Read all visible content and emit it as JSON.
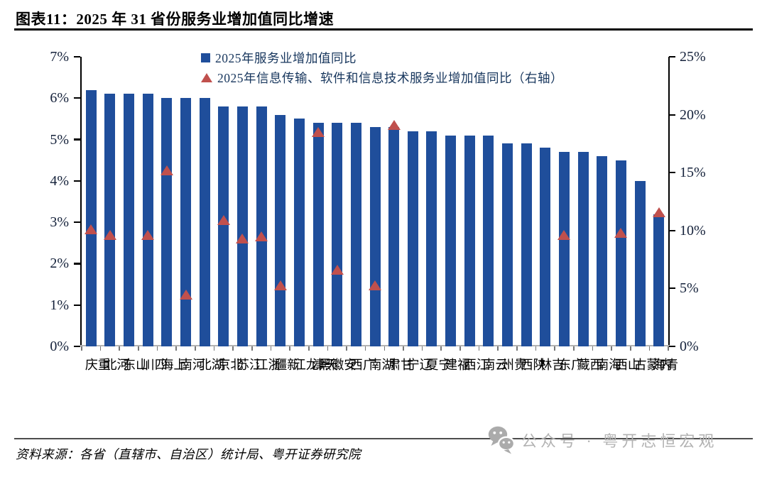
{
  "header": {
    "title": "图表11：2025 年 31 省份服务业增加值同比增速"
  },
  "chart_data": {
    "type": "bar",
    "title": "图表11：2025 年 31 省份服务业增加值同比增速",
    "legend": [
      "2025年服务业增加值同比",
      "2025年信息传输、软件和信息技术服务业增加值同比（右轴）"
    ],
    "legend_position": "top-center",
    "grid": false,
    "categories": [
      "重庆",
      "河北",
      "山东",
      "四川",
      "上海",
      "河南",
      "湖北",
      "北京",
      "江苏",
      "浙江",
      "新疆",
      "黑龙江",
      "天津",
      "安徽",
      "广西",
      "湖南",
      "甘肃",
      "辽宁",
      "宁夏",
      "福建",
      "江西",
      "云南",
      "贵州",
      "陕西",
      "吉林",
      "广东",
      "西藏",
      "海南",
      "山西",
      "内蒙古",
      "青海"
    ],
    "series": [
      {
        "name": "2025年服务业增加值同比",
        "type": "bar",
        "axis": "left",
        "unit": "%",
        "color": "#1F4E9B",
        "values": [
          6.2,
          6.1,
          6.1,
          6.1,
          6.0,
          6.0,
          6.0,
          5.8,
          5.8,
          5.8,
          5.6,
          5.5,
          5.4,
          5.4,
          5.4,
          5.3,
          5.3,
          5.2,
          5.2,
          5.1,
          5.1,
          5.1,
          4.9,
          4.9,
          4.8,
          4.7,
          4.7,
          4.6,
          4.5,
          4.0,
          3.2
        ]
      },
      {
        "name": "2025年信息传输、软件和信息技术服务业增加值同比（右轴）",
        "type": "triangle-marker",
        "axis": "right",
        "unit": "%",
        "color": "#C0504D",
        "values": [
          10.1,
          9.6,
          null,
          9.6,
          15.2,
          4.5,
          null,
          10.9,
          9.3,
          9.5,
          5.3,
          null,
          18.5,
          6.6,
          null,
          5.3,
          19.1,
          null,
          null,
          null,
          null,
          null,
          null,
          null,
          null,
          9.6,
          null,
          null,
          9.8,
          null,
          11.6
        ]
      }
    ],
    "left_axis": {
      "min": 0,
      "max": 7,
      "ticks": [
        "7%",
        "6%",
        "5%",
        "4%",
        "3%",
        "2%",
        "1%",
        "0%"
      ]
    },
    "right_axis": {
      "min": 0,
      "max": 25,
      "ticks": [
        "25%",
        "20%",
        "15%",
        "10%",
        "5%",
        "0%"
      ]
    }
  },
  "footer": {
    "source": "资料来源：各省（直辖市、自治区）统计局、粤开证券研究院",
    "watermark": "公众号 · 粤开志恒宏观",
    "watermark_icon": "wechat-icon"
  },
  "colors": {
    "bar": "#1F4E9B",
    "marker": "#C0504D",
    "legend_text": "#17365D",
    "watermark": "#b3b3b3"
  }
}
